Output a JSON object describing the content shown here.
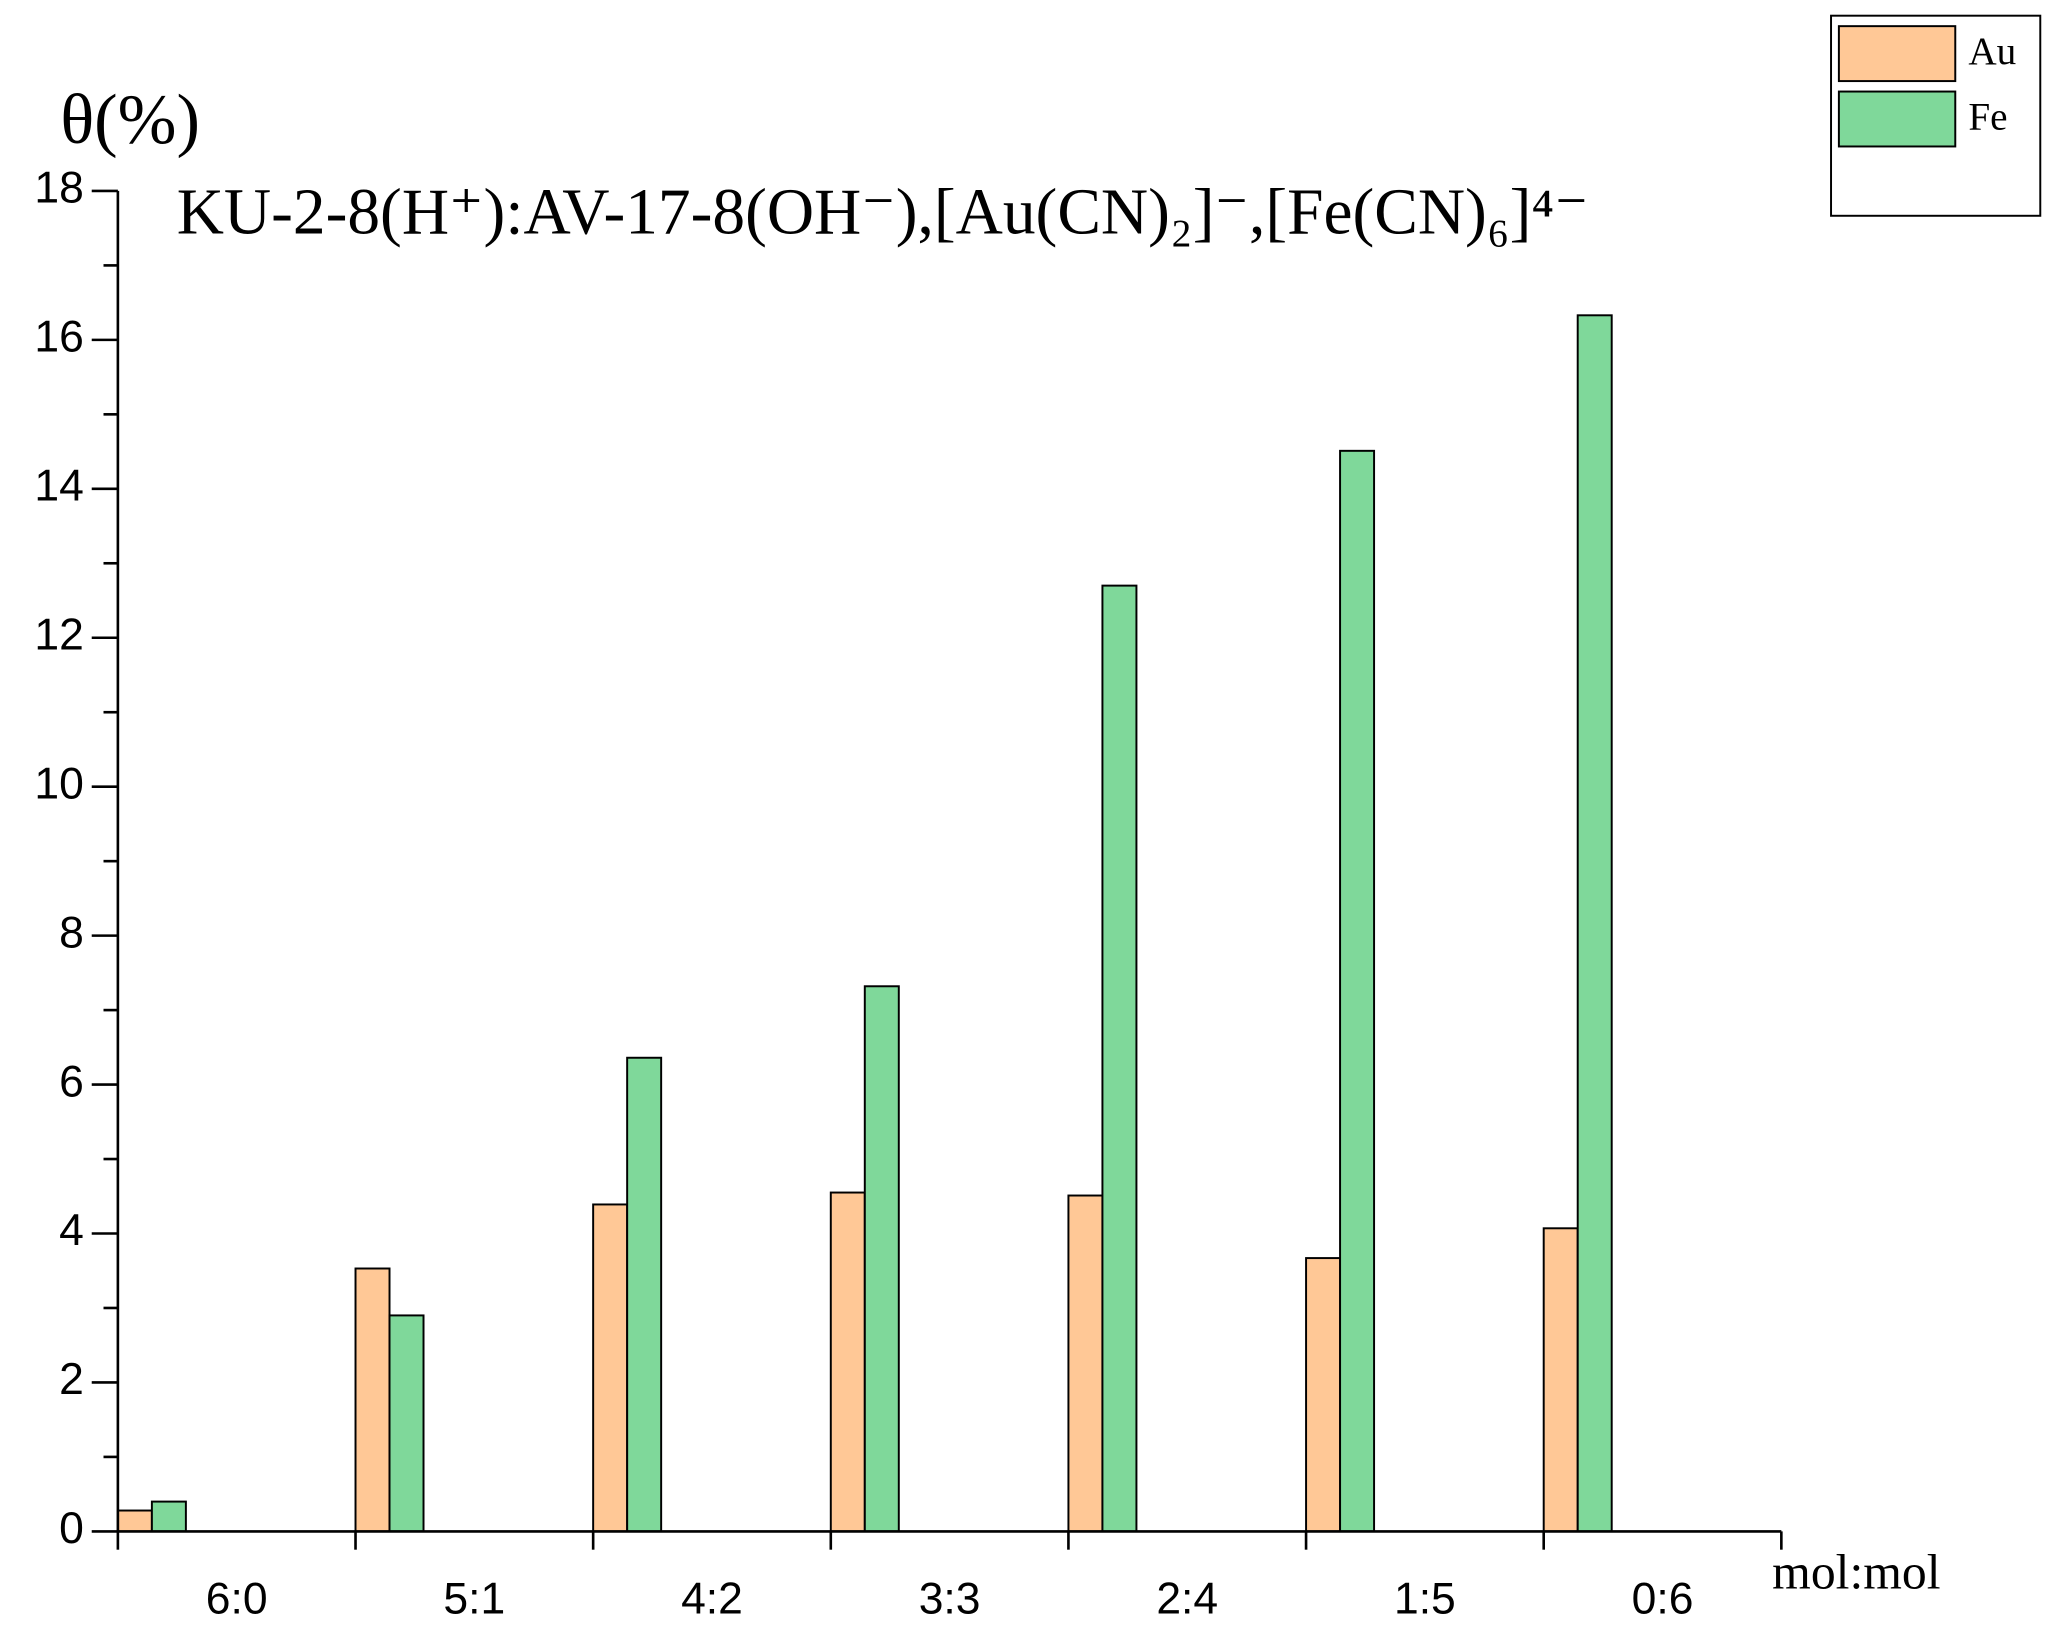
{
  "chart_data": {
    "type": "bar",
    "title": "KU-2-8(H⁺):AV-17-8(OH⁻),[Au(CN)₂]⁻,[Fe(CN)₆]⁴⁻",
    "y_label": "θ(%)",
    "x_label": "mol:mol",
    "categories": [
      "6:0",
      "5:1",
      "4:2",
      "3:3",
      "2:4",
      "1:5",
      "0:6"
    ],
    "series": [
      {
        "name": "Au",
        "color": "#ffc896",
        "values": [
          0.28,
          3.53,
          4.39,
          4.55,
          4.51,
          3.67,
          4.07
        ]
      },
      {
        "name": "Fe",
        "color": "#7fd89a",
        "values": [
          0.4,
          2.9,
          6.36,
          7.32,
          12.7,
          14.51,
          16.33
        ]
      }
    ],
    "ylim": [
      0,
      18
    ],
    "yticks": [
      0,
      2,
      4,
      6,
      8,
      10,
      12,
      14,
      16,
      18
    ],
    "yminorticks": [
      1,
      3,
      5,
      7,
      9,
      11,
      13,
      15,
      17
    ],
    "legend": "top-right"
  }
}
